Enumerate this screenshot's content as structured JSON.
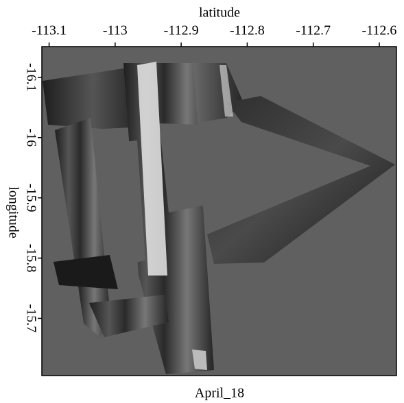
{
  "chart_data": {
    "type": "image",
    "title": "April_18",
    "xlabel": "latitude",
    "ylabel": "longitude",
    "xlim": [
      -113.111,
      -112.574
    ],
    "xticks": [
      -113.1,
      -113,
      -112.9,
      -112.8,
      -112.7,
      -112.6
    ],
    "ylim": [
      -16.151,
      -15.605
    ],
    "yticks": [
      -16.1,
      -16,
      -15.9,
      -15.8,
      -15.7
    ]
  }
}
